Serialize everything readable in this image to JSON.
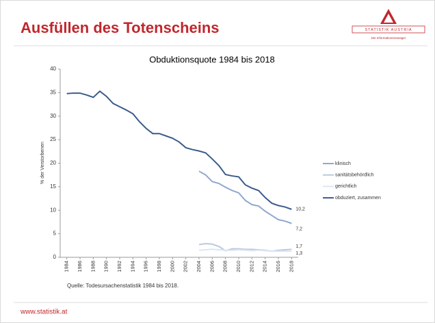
{
  "header": {
    "title": "Ausfüllen des Totenscheins",
    "logo": {
      "name": "STATISTIK AUSTRIA",
      "tagline": "Die Informationsmanager"
    }
  },
  "footer": {
    "url": "www.statistik.at"
  },
  "chart_data": {
    "type": "line",
    "title": "Obduktionsquote 1984 bis 2018",
    "y_label": "% der Verstorbenen",
    "source": "Quelle: Todesursachenstatistik  1984 bis 2018.",
    "x": [
      1984,
      1985,
      1986,
      1987,
      1988,
      1989,
      1990,
      1991,
      1992,
      1993,
      1994,
      1995,
      1996,
      1997,
      1998,
      1999,
      2000,
      2001,
      2002,
      2003,
      2004,
      2005,
      2006,
      2007,
      2008,
      2009,
      2010,
      2011,
      2012,
      2013,
      2014,
      2015,
      2016,
      2017,
      2018
    ],
    "xlim": [
      1983,
      2019
    ],
    "xticks": [
      1984,
      1986,
      1988,
      1990,
      1992,
      1994,
      1996,
      1998,
      2000,
      2002,
      2004,
      2006,
      2008,
      2010,
      2012,
      2014,
      2016,
      2018
    ],
    "ylim": [
      0,
      40
    ],
    "yticks": [
      0,
      5,
      10,
      15,
      20,
      25,
      30,
      35,
      40
    ],
    "grid": false,
    "legend": "right",
    "series": [
      {
        "name": "klinisch",
        "color": "#8fa8cc",
        "values": [
          null,
          null,
          null,
          null,
          null,
          null,
          null,
          null,
          null,
          null,
          null,
          null,
          null,
          null,
          null,
          null,
          null,
          null,
          null,
          null,
          18.3,
          17.5,
          16.1,
          15.7,
          14.9,
          14.2,
          13.7,
          12.1,
          11.2,
          10.9,
          9.8,
          8.9,
          8.0,
          7.7,
          7.2
        ],
        "value_labels": [
          null,
          null,
          null,
          null,
          null,
          null,
          null,
          null,
          null,
          null,
          null,
          null,
          null,
          null,
          null,
          null,
          null,
          null,
          null,
          null,
          null,
          null,
          null,
          null,
          null,
          null,
          null,
          null,
          null,
          null,
          null,
          null,
          null,
          null,
          "7,2"
        ]
      },
      {
        "name": "sanitätsbehördlich",
        "color": "#b9c9e0",
        "values": [
          null,
          null,
          null,
          null,
          null,
          null,
          null,
          null,
          null,
          null,
          null,
          null,
          null,
          null,
          null,
          null,
          null,
          null,
          null,
          null,
          2.7,
          2.9,
          2.8,
          2.3,
          1.4,
          1.8,
          1.8,
          1.7,
          1.7,
          1.6,
          1.5,
          1.3,
          1.5,
          1.6,
          1.7
        ],
        "value_labels": [
          null,
          null,
          null,
          null,
          null,
          null,
          null,
          null,
          null,
          null,
          null,
          null,
          null,
          null,
          null,
          null,
          null,
          null,
          null,
          null,
          null,
          null,
          null,
          null,
          null,
          null,
          null,
          null,
          null,
          null,
          null,
          null,
          null,
          null,
          "1,7"
        ]
      },
      {
        "name": "gerichtlich",
        "color": "#dde6f2",
        "values": [
          null,
          null,
          null,
          null,
          null,
          null,
          null,
          null,
          null,
          null,
          null,
          null,
          null,
          null,
          null,
          null,
          null,
          null,
          null,
          null,
          1.5,
          1.6,
          1.7,
          1.6,
          1.5,
          1.5,
          1.6,
          1.5,
          1.4,
          1.5,
          1.4,
          1.3,
          1.3,
          1.3,
          1.3
        ],
        "value_labels": [
          null,
          null,
          null,
          null,
          null,
          null,
          null,
          null,
          null,
          null,
          null,
          null,
          null,
          null,
          null,
          null,
          null,
          null,
          null,
          null,
          null,
          null,
          null,
          null,
          null,
          null,
          null,
          null,
          null,
          null,
          null,
          null,
          null,
          null,
          "1,3"
        ]
      },
      {
        "name": "obduziert, zusammen",
        "color": "#3b5b8c",
        "values": [
          34.8,
          34.9,
          34.9,
          34.5,
          34.0,
          35.3,
          34.2,
          32.7,
          32.0,
          31.3,
          30.5,
          28.8,
          27.4,
          26.3,
          26.3,
          25.8,
          25.3,
          24.5,
          23.3,
          22.9,
          22.6,
          22.2,
          20.9,
          19.5,
          17.6,
          17.3,
          17.1,
          15.4,
          14.7,
          14.2,
          12.7,
          11.5,
          11.0,
          10.7,
          10.2
        ],
        "value_labels": [
          null,
          null,
          null,
          null,
          null,
          null,
          null,
          null,
          null,
          null,
          null,
          null,
          null,
          null,
          null,
          null,
          null,
          null,
          null,
          null,
          null,
          null,
          null,
          null,
          null,
          null,
          null,
          null,
          null,
          null,
          null,
          null,
          null,
          null,
          "10,2"
        ]
      }
    ]
  }
}
